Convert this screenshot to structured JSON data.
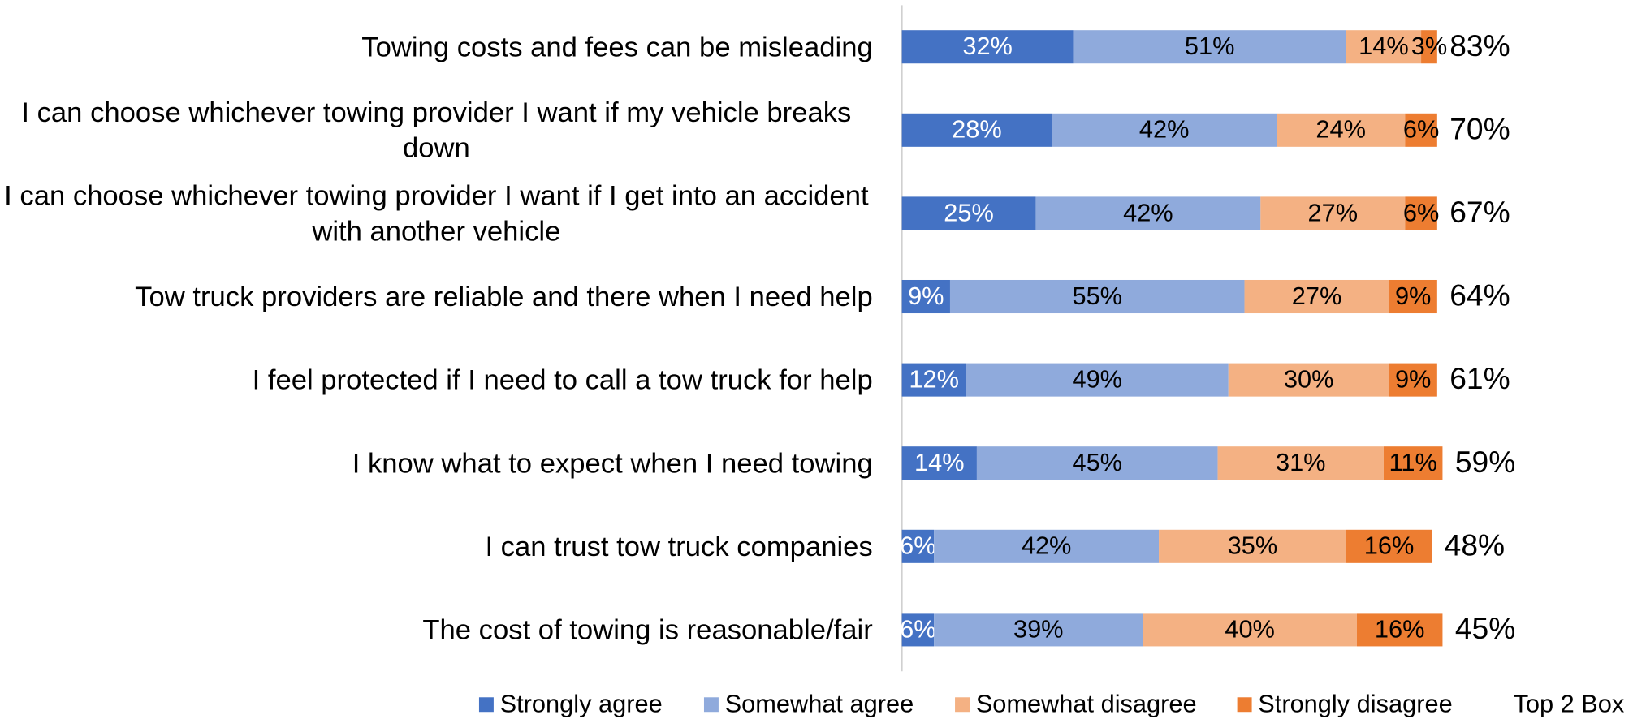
{
  "chart_data": {
    "type": "stacked-bar-horizontal",
    "categories": [
      "Towing costs and fees can be misleading",
      "I can choose whichever towing provider I want if my vehicle breaks down",
      "I can choose whichever towing provider I want if I get into an accident with another vehicle",
      "Tow truck providers are reliable and there when I need help",
      "I feel protected if I need to call a tow truck for help",
      "I know what to expect when I need towing",
      "I can trust tow truck companies",
      "The cost of towing is reasonable/fair"
    ],
    "xlim": [
      0,
      100
    ],
    "series": [
      {
        "name": "Strongly agree",
        "color": "#4472c4",
        "values": [
          32,
          28,
          25,
          9,
          12,
          14,
          6,
          6
        ],
        "value_labels": [
          "32%",
          "28%",
          "25%",
          "9%",
          "12%",
          "14%",
          "6%",
          "6%"
        ]
      },
      {
        "name": "Somewhat agree",
        "color": "#8faadc",
        "values": [
          51,
          42,
          42,
          55,
          49,
          45,
          42,
          39
        ],
        "value_labels": [
          "51%",
          "42%",
          "42%",
          "55%",
          "49%",
          "45%",
          "42%",
          "39%"
        ]
      },
      {
        "name": "Somewhat disagree",
        "color": "#f4b183",
        "values": [
          14,
          24,
          27,
          27,
          30,
          31,
          35,
          40
        ],
        "value_labels": [
          "14%",
          "24%",
          "27%",
          "27%",
          "30%",
          "31%",
          "35%",
          "40%"
        ]
      },
      {
        "name": "Strongly disagree",
        "color": "#ed7d31",
        "values": [
          3,
          6,
          6,
          9,
          9,
          11,
          16,
          16
        ],
        "value_labels": [
          "3%",
          "6%",
          "6%",
          "9%",
          "9%",
          "11%",
          "16%",
          "16%"
        ]
      }
    ],
    "top2box": {
      "name": "Top 2 Box",
      "values": [
        83,
        70,
        67,
        64,
        61,
        59,
        48,
        45
      ],
      "value_labels": [
        "83%",
        "70%",
        "67%",
        "64%",
        "61%",
        "59%",
        "48%",
        "45%"
      ]
    }
  }
}
